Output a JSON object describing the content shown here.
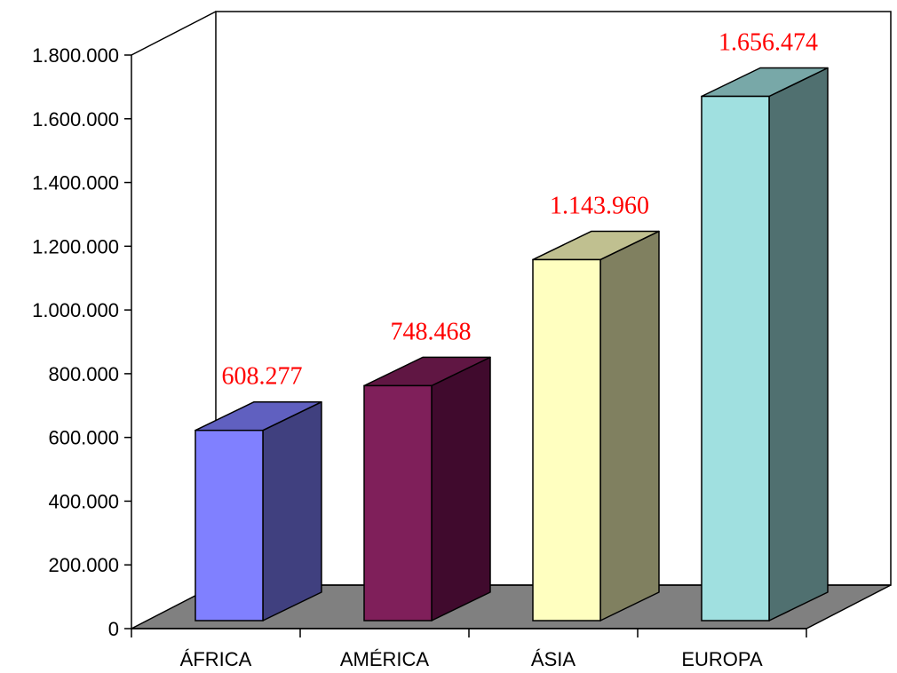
{
  "chart_data": {
    "type": "bar",
    "style": "3d-column",
    "title": "",
    "xlabel": "",
    "ylabel": "",
    "categories": [
      "ÁFRICA",
      "AMÉRICA",
      "ÁSIA",
      "EUROPA"
    ],
    "values": [
      608277,
      748468,
      1143960,
      1656474
    ],
    "data_labels": [
      "608.277",
      "748.468",
      "1.143.960",
      "1.656.474"
    ],
    "ylim": [
      0,
      1800000
    ],
    "y_ticks": [
      0,
      200000,
      400000,
      600000,
      800000,
      1000000,
      1200000,
      1400000,
      1600000,
      1800000
    ],
    "y_tick_labels": [
      "0",
      "200.000",
      "400.000",
      "600.000",
      "800.000",
      "1.000.000",
      "1.200.000",
      "1.400.000",
      "1.600.000",
      "1.800.000"
    ],
    "grid": false,
    "legend": "none",
    "colors": {
      "bars_front": [
        "#8080ff",
        "#7f1f5a",
        "#ffffc0",
        "#a0e0e0"
      ],
      "bars_side": [
        "#40407f",
        "#400a2d",
        "#808060",
        "#507070"
      ],
      "bars_top": [
        "#6060c0",
        "#601643",
        "#c0c090",
        "#78a8a8"
      ],
      "floor": "#808080",
      "data_label": "#ff0000"
    }
  }
}
